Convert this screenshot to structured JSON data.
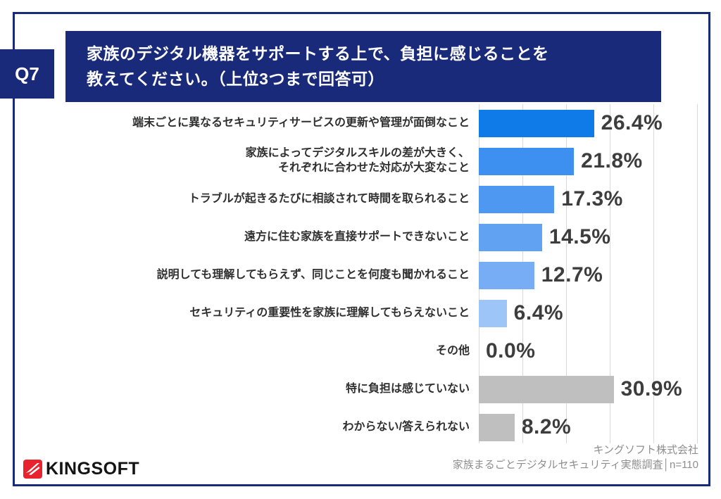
{
  "question_badge": "Q7",
  "title": {
    "line1": "家族のデジタル機器をサポートする上で、負担に感じることを",
    "line2": "教えてください。（上位3つまで回答可）"
  },
  "chart_data": {
    "type": "bar",
    "orientation": "horizontal",
    "unit": "%",
    "categories": [
      "端末ごとに異なるセキュリティサービスの更新や管理が面倒なこと",
      "家族によってデジタルスキルの差が大きく、\nそれぞれに合わせた対応が大変なこと",
      "トラブルが起きるたびに相談されて時間を取られること",
      "遠方に住む家族を直接サポートできないこと",
      "説明しても理解してもらえず、同じことを何度も聞かれること",
      "セキュリティの重要性を家族に理解してもらえないこと",
      "その他",
      "特に負担は感じていない",
      "わからない/答えられない"
    ],
    "values": [
      26.4,
      21.8,
      17.3,
      14.5,
      12.7,
      6.4,
      0.0,
      30.9,
      8.2
    ],
    "value_labels": [
      "26.4%",
      "21.8%",
      "17.3%",
      "14.5%",
      "12.7%",
      "6.4%",
      "0.0%",
      "30.9%",
      "8.2%"
    ],
    "bar_colors": [
      "#0e7be8",
      "#3e90f0",
      "#4f98f1",
      "#62a2f2",
      "#76adf4",
      "#9dc5f7",
      "#9dc5f7",
      "#bfbfbf",
      "#bfbfbf"
    ],
    "xlim": [
      0,
      50
    ],
    "gridline_step": 10,
    "grid": true,
    "legend": false,
    "title": "",
    "xlabel": "",
    "ylabel": ""
  },
  "footer": {
    "logo_text": "KINGSOFT",
    "source_line1": "キングソフト株式会社",
    "source_line2": "家族まるごとデジタルセキュリティ実態調査│n=110"
  },
  "colors": {
    "navy": "#1a2a7a",
    "highlight_bar": "#0e7be8",
    "gray_bar": "#bfbfbf",
    "logo_red": "#e8232e",
    "gridline": "#d9d9d9",
    "value_text": "#3d3d3d"
  }
}
